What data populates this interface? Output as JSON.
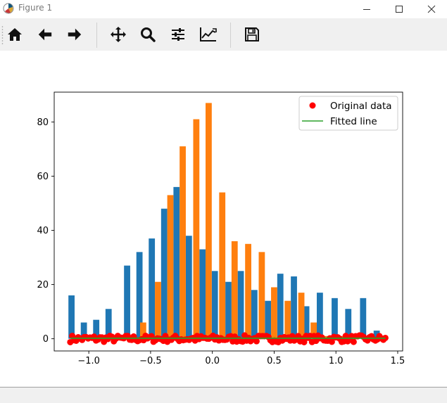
{
  "window": {
    "title": "Figure 1",
    "minimize_icon": "minimize-icon",
    "maximize_icon": "maximize-icon",
    "close_icon": "close-icon"
  },
  "toolbar": {
    "buttons": [
      {
        "name": "home-button",
        "icon": "home-icon"
      },
      {
        "name": "back-button",
        "icon": "arrow-left-icon"
      },
      {
        "name": "forward-button",
        "icon": "arrow-right-icon"
      },
      {
        "name": "pan-button",
        "icon": "move-icon"
      },
      {
        "name": "zoom-button",
        "icon": "magnifier-icon"
      },
      {
        "name": "configure-subplots-button",
        "icon": "sliders-icon"
      },
      {
        "name": "edit-axis-button",
        "icon": "line-chart-icon"
      },
      {
        "name": "save-button",
        "icon": "floppy-disk-icon"
      }
    ]
  },
  "chart_data": {
    "type": "bar",
    "xlim": [
      -1.28,
      1.54
    ],
    "ylim": [
      -4.5,
      91
    ],
    "x_ticks": [
      -1.0,
      -0.5,
      0.0,
      0.5,
      1.0,
      1.5
    ],
    "x_tick_labels": [
      "−1.0",
      "−0.5",
      "0.0",
      "0.5",
      "1.0",
      "1.5"
    ],
    "y_ticks": [
      0,
      20,
      40,
      60,
      80
    ],
    "y_tick_labels": [
      "0",
      "20",
      "40",
      "60",
      "80"
    ],
    "grid": false,
    "legend_placement": "top-right",
    "legend": [
      {
        "label": "Original data",
        "marker": "dot",
        "color": "#ff0000"
      },
      {
        "label": "Fitted line",
        "marker": "line",
        "color": "#2ca02c"
      }
    ],
    "bar_width": 0.05,
    "series": [
      {
        "color": "#1f77b4",
        "bars": [
          [
            -1.14,
            16
          ],
          [
            -1.04,
            6
          ],
          [
            -0.94,
            7
          ],
          [
            -0.84,
            11
          ],
          [
            -0.69,
            27
          ],
          [
            -0.59,
            32
          ],
          [
            -0.49,
            37
          ],
          [
            -0.39,
            48
          ],
          [
            -0.29,
            56
          ],
          [
            -0.19,
            38
          ],
          [
            -0.08,
            33
          ],
          [
            0.02,
            25
          ],
          [
            0.13,
            21
          ],
          [
            0.23,
            25
          ],
          [
            0.34,
            18
          ],
          [
            0.45,
            14
          ],
          [
            0.55,
            24
          ],
          [
            0.66,
            23
          ],
          [
            0.76,
            12
          ],
          [
            0.87,
            17
          ],
          [
            0.99,
            15
          ],
          [
            1.1,
            11
          ],
          [
            1.22,
            15
          ],
          [
            1.33,
            3
          ]
        ]
      },
      {
        "color": "#ff7f0e",
        "bars": [
          [
            -0.56,
            6
          ],
          [
            -0.44,
            21
          ],
          [
            -0.34,
            53
          ],
          [
            -0.24,
            71
          ],
          [
            -0.13,
            81
          ],
          [
            -0.03,
            87
          ],
          [
            0.08,
            54
          ],
          [
            0.18,
            36
          ],
          [
            0.29,
            35
          ],
          [
            0.4,
            32
          ],
          [
            0.5,
            19
          ],
          [
            0.61,
            14
          ],
          [
            0.72,
            17
          ],
          [
            0.82,
            6
          ],
          [
            0.93,
            1
          ],
          [
            1.05,
            1
          ],
          [
            1.16,
            1
          ],
          [
            1.28,
            1
          ]
        ]
      }
    ],
    "original_data": {
      "color": "#ff0000",
      "x_range": [
        -1.15,
        1.4
      ],
      "y_center": 0,
      "y_spread": 2.5
    },
    "fitted_line": {
      "color": "#2ca02c",
      "x": [
        -1.15,
        1.4
      ],
      "y": [
        0.2,
        0.2
      ]
    }
  }
}
